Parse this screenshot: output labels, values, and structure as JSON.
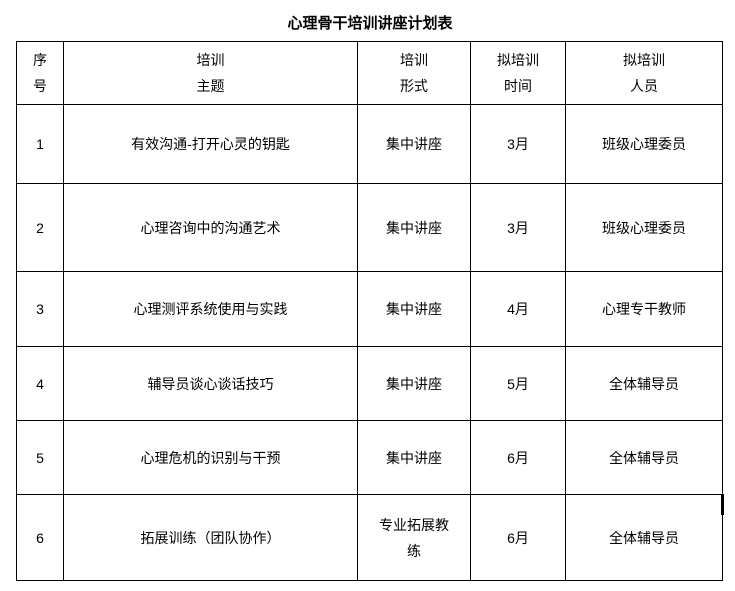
{
  "title": "心理骨干培训讲座计划表",
  "columns": [
    {
      "line1": "序",
      "line2": "号"
    },
    {
      "line1": "培训",
      "line2": "主题"
    },
    {
      "line1": "培训",
      "line2": "形式"
    },
    {
      "line1": "拟培训",
      "line2": "时间"
    },
    {
      "line1": "拟培训",
      "line2": "人员"
    }
  ],
  "rows": [
    {
      "no": "1",
      "topic": "有效沟通-打开心灵的钥匙",
      "form": "集中讲座",
      "time": "3月",
      "people": "班级心理委员"
    },
    {
      "no": "2",
      "topic": "心理咨询中的沟通艺术",
      "form": "集中讲座",
      "time": "3月",
      "people": "班级心理委员"
    },
    {
      "no": "3",
      "topic": "心理测评系统使用与实践",
      "form": "集中讲座",
      "time": "4月",
      "people": "心理专干教师"
    },
    {
      "no": "4",
      "topic": "辅导员谈心谈话技巧",
      "form": "集中讲座",
      "time": "5月",
      "people": "全体辅导员"
    },
    {
      "no": "5",
      "topic": "心理危机的识别与干预",
      "form": "集中讲座",
      "time": "6月",
      "people": "全体辅导员"
    },
    {
      "no": "6",
      "topic": "拓展训练（团队协作）",
      "form": "专业拓展教练",
      "time": "6月",
      "people": "全体辅导员"
    }
  ]
}
